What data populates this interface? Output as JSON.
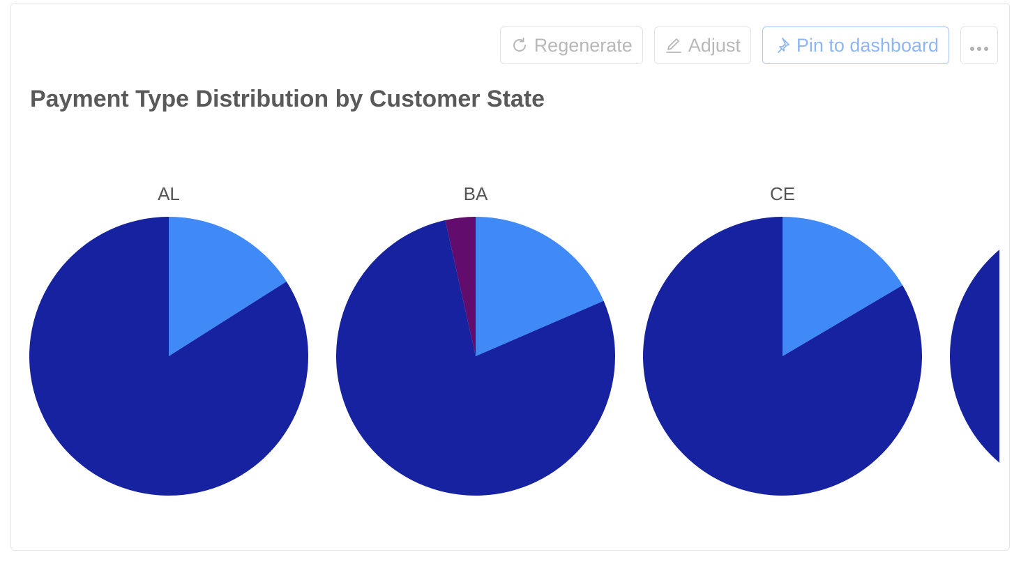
{
  "toolbar": {
    "regenerate_label": "Regenerate",
    "adjust_label": "Adjust",
    "pin_label": "Pin to dashboard",
    "more_icon": "more-horizontal-icon"
  },
  "chart_data": {
    "type": "pie",
    "title": "Payment Type Distribution by Customer State",
    "colors": {
      "segment_a": "#1622a0",
      "segment_b": "#408af8",
      "segment_c": "#620d6e"
    },
    "pies": [
      {
        "label": "AL",
        "slices": [
          {
            "key": "segment_b",
            "value": 16.0
          },
          {
            "key": "segment_a",
            "value": 84.0
          }
        ]
      },
      {
        "label": "BA",
        "slices": [
          {
            "key": "segment_b",
            "value": 18.5
          },
          {
            "key": "segment_a",
            "value": 78.0
          },
          {
            "key": "segment_c",
            "value": 3.5
          }
        ]
      },
      {
        "label": "CE",
        "slices": [
          {
            "key": "segment_b",
            "value": 16.5
          },
          {
            "key": "segment_a",
            "value": 83.5
          }
        ]
      },
      {
        "label": "",
        "slices": [
          {
            "key": "segment_a",
            "value": 100
          }
        ]
      }
    ]
  }
}
